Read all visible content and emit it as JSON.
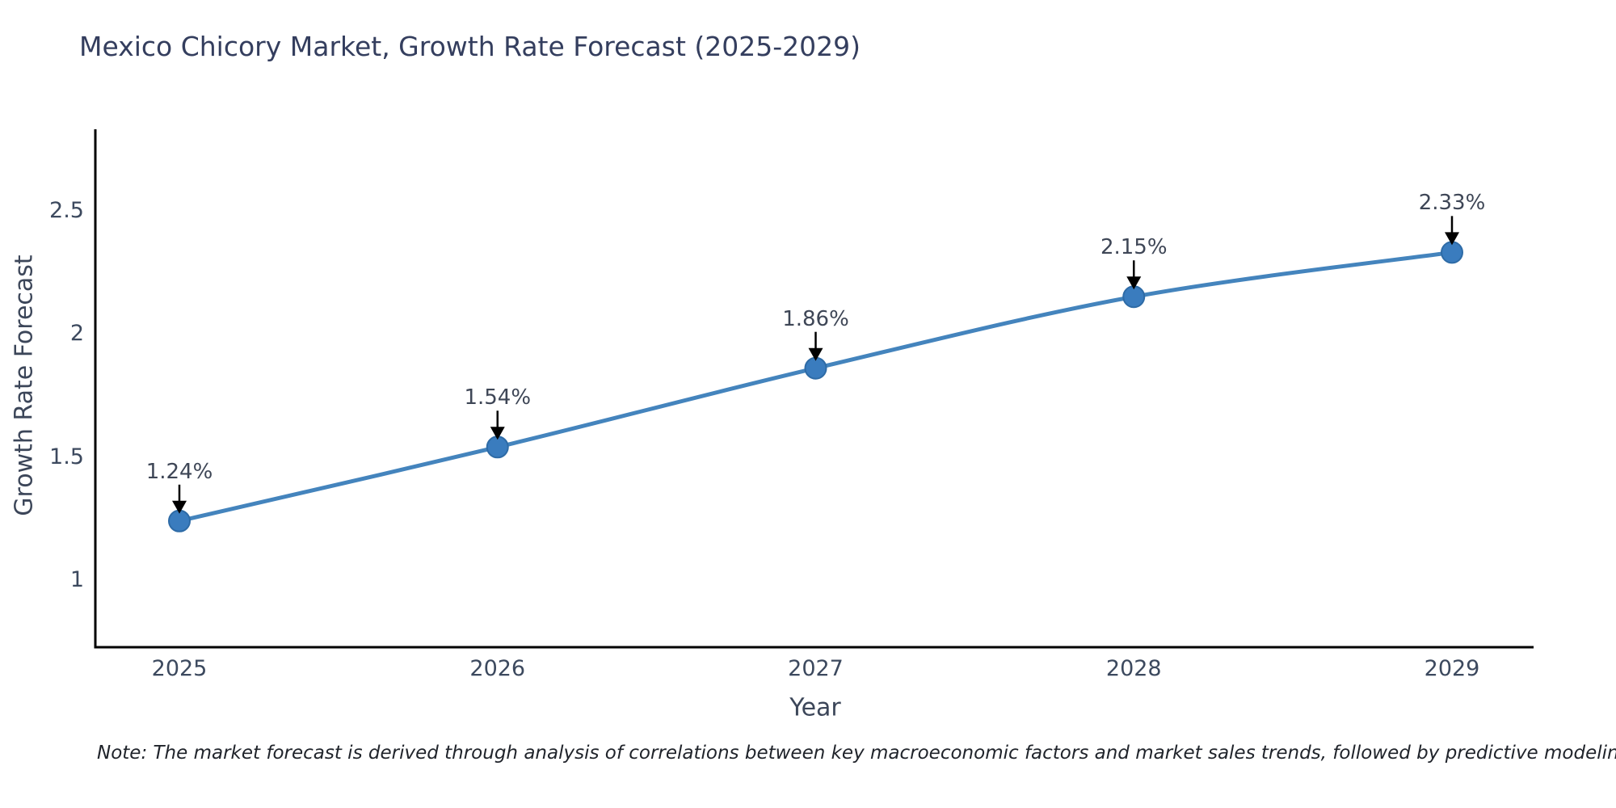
{
  "page": {
    "background": "#ffffff"
  },
  "chart_data": {
    "type": "line",
    "title": "Mexico Chicory Market, Growth Rate Forecast (2025-2029)",
    "xlabel": "Year",
    "ylabel": "Growth Rate Forecast",
    "categories": [
      "2025",
      "2026",
      "2027",
      "2028",
      "2029"
    ],
    "series": [
      {
        "name": "Growth Rate Forecast",
        "values": [
          1.24,
          1.54,
          1.86,
          2.15,
          2.33
        ]
      }
    ],
    "point_labels": [
      "1.24%",
      "1.54%",
      "1.86%",
      "2.15%",
      "2.33%"
    ],
    "yticks": [
      1,
      1.5,
      2,
      2.5
    ],
    "ytick_labels": [
      "1",
      "1.5",
      "2",
      "2.5"
    ],
    "ylim": [
      0.69,
      2.85
    ],
    "grid": false,
    "legend": "none",
    "annotation_style": "down-arrow",
    "colors": {
      "line": "#4484bd",
      "marker": "#3a7cbe",
      "marker_edge": "#2e6ba6",
      "arrow": "#000000",
      "axis": "#000000"
    }
  },
  "note": "Note: The market forecast is derived through analysis of correlations between key macroeconomic factors and market sales trends, followed by predictive modeling to project future sales"
}
